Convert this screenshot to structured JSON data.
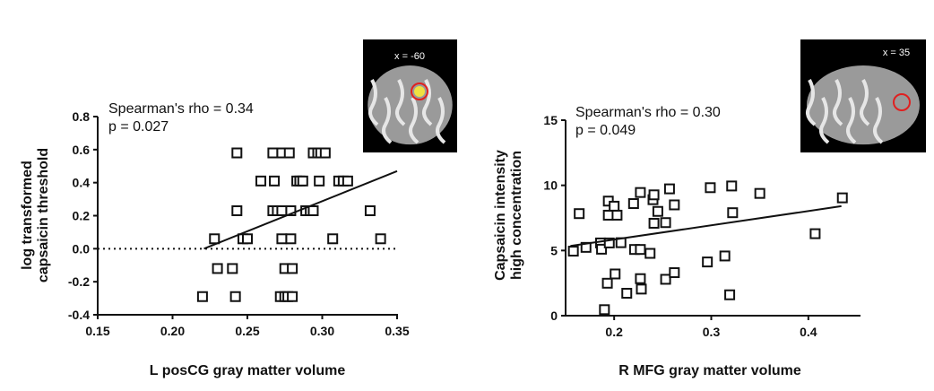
{
  "chart_data": [
    {
      "type": "scatter",
      "title": "",
      "xlabel": "L posCG gray matter volume",
      "ylabel": [
        "log transformed",
        "capsaicin threshold"
      ],
      "xlim": [
        0.15,
        0.35
      ],
      "ylim": [
        -0.4,
        0.8
      ],
      "xticks": [
        "0.15",
        "0.20",
        "0.25",
        "0.30",
        "0.35"
      ],
      "xtick_values": [
        0.15,
        0.2,
        0.25,
        0.3,
        0.35
      ],
      "yticks": [
        "-0.4",
        "-0.2",
        "0.0",
        "0.2",
        "0.4",
        "0.6",
        "0.8"
      ],
      "ytick_values": [
        -0.4,
        -0.2,
        0,
        0.2,
        0.4,
        0.6,
        0.8
      ],
      "annotation": [
        "Spearman's rho = 0.34",
        "p = 0.027"
      ],
      "inset_label": "x = -60",
      "reference_line_y": 0,
      "fit_line": [
        [
          0.221,
          0.0
        ],
        [
          0.35,
          0.47
        ]
      ],
      "points": [
        [
          0.243,
          0.58
        ],
        [
          0.267,
          0.58
        ],
        [
          0.273,
          0.58
        ],
        [
          0.278,
          0.58
        ],
        [
          0.294,
          0.58
        ],
        [
          0.297,
          0.58
        ],
        [
          0.299,
          0.58
        ],
        [
          0.302,
          0.58
        ],
        [
          0.259,
          0.41
        ],
        [
          0.268,
          0.41
        ],
        [
          0.283,
          0.41
        ],
        [
          0.285,
          0.41
        ],
        [
          0.287,
          0.41
        ],
        [
          0.298,
          0.41
        ],
        [
          0.311,
          0.41
        ],
        [
          0.314,
          0.41
        ],
        [
          0.317,
          0.41
        ],
        [
          0.243,
          0.23
        ],
        [
          0.267,
          0.23
        ],
        [
          0.27,
          0.23
        ],
        [
          0.273,
          0.23
        ],
        [
          0.279,
          0.23
        ],
        [
          0.289,
          0.23
        ],
        [
          0.292,
          0.23
        ],
        [
          0.294,
          0.23
        ],
        [
          0.332,
          0.23
        ],
        [
          0.228,
          0.06
        ],
        [
          0.247,
          0.06
        ],
        [
          0.25,
          0.06
        ],
        [
          0.273,
          0.06
        ],
        [
          0.279,
          0.06
        ],
        [
          0.307,
          0.06
        ],
        [
          0.339,
          0.06
        ],
        [
          0.23,
          -0.12
        ],
        [
          0.24,
          -0.12
        ],
        [
          0.275,
          -0.12
        ],
        [
          0.28,
          -0.12
        ],
        [
          0.22,
          -0.29
        ],
        [
          0.242,
          -0.29
        ],
        [
          0.272,
          -0.29
        ],
        [
          0.275,
          -0.29
        ],
        [
          0.277,
          -0.29
        ],
        [
          0.28,
          -0.29
        ]
      ]
    },
    {
      "type": "scatter",
      "title": "",
      "xlabel": "R MFG gray matter volume",
      "ylabel": [
        "Capsaicin intensity",
        "high concentration"
      ],
      "xlim": [
        0.15,
        0.45
      ],
      "ylim": [
        0,
        15
      ],
      "xticks": [
        "0.2",
        "0.3",
        "0.4"
      ],
      "xtick_values": [
        0.2,
        0.3,
        0.4
      ],
      "yticks": [
        "0",
        "5",
        "10",
        "15"
      ],
      "ytick_values": [
        0,
        5,
        10,
        15
      ],
      "annotation": [
        "Spearman's rho = 0.30",
        "p = 0.049"
      ],
      "inset_label": "x = 35",
      "fit_line": [
        [
          0.155,
          5.35
        ],
        [
          0.434,
          8.4
        ]
      ],
      "points": [
        [
          0.158,
          4.95
        ],
        [
          0.164,
          7.83
        ],
        [
          0.171,
          5.24
        ],
        [
          0.186,
          5.58
        ],
        [
          0.187,
          5.1
        ],
        [
          0.19,
          0.46
        ],
        [
          0.194,
          8.79
        ],
        [
          0.194,
          7.71
        ],
        [
          0.2,
          8.4
        ],
        [
          0.195,
          5.58
        ],
        [
          0.193,
          2.49
        ],
        [
          0.201,
          3.2
        ],
        [
          0.203,
          7.71
        ],
        [
          0.207,
          5.6
        ],
        [
          0.213,
          1.72
        ],
        [
          0.22,
          8.6
        ],
        [
          0.221,
          5.08
        ],
        [
          0.227,
          9.45
        ],
        [
          0.227,
          5.08
        ],
        [
          0.227,
          2.84
        ],
        [
          0.228,
          2.04
        ],
        [
          0.237,
          4.78
        ],
        [
          0.24,
          8.9
        ],
        [
          0.241,
          9.27
        ],
        [
          0.241,
          7.09
        ],
        [
          0.245,
          8.0
        ],
        [
          0.253,
          7.14
        ],
        [
          0.253,
          2.79
        ],
        [
          0.257,
          9.73
        ],
        [
          0.262,
          3.3
        ],
        [
          0.262,
          8.5
        ],
        [
          0.296,
          4.12
        ],
        [
          0.299,
          9.82
        ],
        [
          0.314,
          4.58
        ],
        [
          0.319,
          1.6
        ],
        [
          0.321,
          9.95
        ],
        [
          0.322,
          7.9
        ],
        [
          0.35,
          9.38
        ],
        [
          0.407,
          6.29
        ],
        [
          0.435,
          9.04
        ]
      ]
    }
  ]
}
